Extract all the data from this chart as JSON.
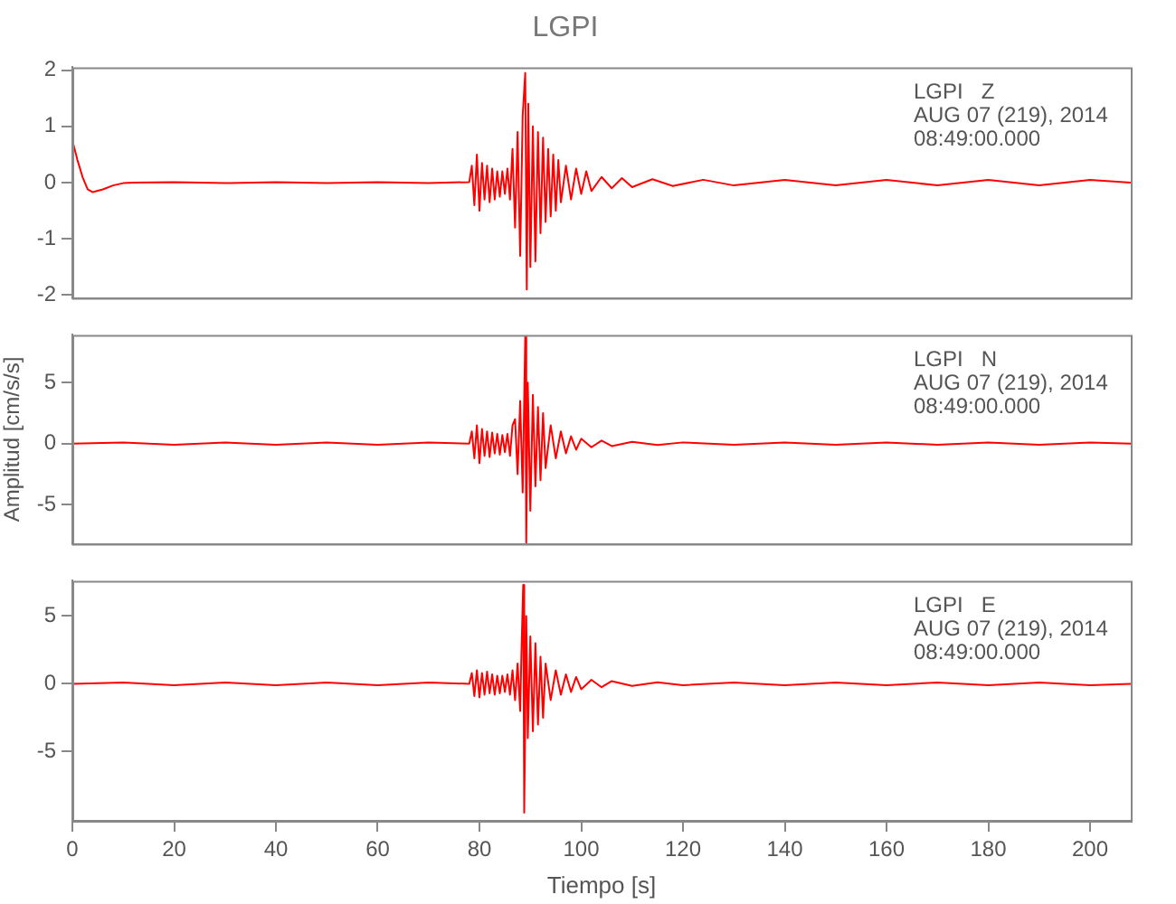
{
  "chart_data": [
    {
      "type": "line",
      "title": "LGPI",
      "annotations": [
        "LGPI   Z",
        "AUG 07 (219), 2014",
        "08:49:00.000"
      ],
      "color": "#ff0000",
      "marker": "none",
      "tick_labels": "y",
      "xlim": [
        0,
        208
      ],
      "xticks": [
        0,
        20,
        40,
        60,
        80,
        100,
        120,
        140,
        160,
        180,
        200
      ],
      "ylim": [
        -2.05,
        2.05
      ],
      "yticks": [
        -2,
        -1,
        0,
        1,
        2
      ],
      "x": [
        0,
        1,
        2,
        3,
        4,
        6,
        8,
        10,
        12,
        20,
        30,
        40,
        50,
        60,
        70,
        78,
        78.5,
        79,
        79.5,
        80,
        80.5,
        81,
        81.5,
        82,
        82.5,
        83,
        83.5,
        84,
        84.5,
        85,
        85.5,
        86,
        86.5,
        87,
        87.5,
        88,
        88.5,
        89,
        89.3,
        89.6,
        90,
        90.5,
        91,
        91.5,
        92,
        92.5,
        93,
        93.5,
        94,
        94.5,
        95,
        95.5,
        96,
        97,
        98,
        99,
        100,
        101,
        102,
        104,
        106,
        108,
        110,
        114,
        118,
        124,
        130,
        140,
        150,
        160,
        170,
        180,
        190,
        200,
        208
      ],
      "values": [
        0.75,
        0.4,
        0.1,
        -0.12,
        -0.17,
        -0.12,
        -0.05,
        -0.01,
        0,
        0.01,
        -0.01,
        0.01,
        -0.01,
        0.01,
        -0.01,
        0.01,
        0.3,
        -0.4,
        0.5,
        -0.5,
        0.35,
        -0.3,
        0.3,
        -0.35,
        0.25,
        -0.3,
        0.2,
        -0.25,
        0.2,
        -0.2,
        0.25,
        -0.3,
        0.6,
        -0.8,
        0.9,
        -1.3,
        1.2,
        1.95,
        -1.9,
        1.4,
        -1.5,
        1,
        -1.4,
        0.9,
        -0.9,
        0.8,
        -0.7,
        0.6,
        -0.6,
        0.5,
        -0.5,
        0.4,
        -0.35,
        0.3,
        -0.3,
        0.25,
        -0.2,
        0.2,
        -0.15,
        0.1,
        -0.1,
        0.08,
        -0.08,
        0.06,
        -0.06,
        0.05,
        -0.05,
        0.05,
        -0.05,
        0.05,
        -0.05,
        0.05,
        -0.05,
        0.05,
        0
      ]
    },
    {
      "type": "line",
      "ylabel": "Amplitud [cm/s/s]",
      "annotations": [
        "LGPI   N",
        "AUG 07 (219), 2014",
        "08:49:00.000"
      ],
      "color": "#ff0000",
      "marker": "none",
      "tick_labels": "y",
      "xlim": [
        0,
        208
      ],
      "xticks": [
        0,
        20,
        40,
        60,
        80,
        100,
        120,
        140,
        160,
        180,
        200
      ],
      "ylim": [
        -8.2,
        8.9
      ],
      "yticks": [
        -5,
        0,
        5
      ],
      "x": [
        0,
        10,
        20,
        30,
        40,
        50,
        60,
        70,
        78,
        78.5,
        79,
        79.5,
        80,
        80.5,
        81,
        81.5,
        82,
        82.5,
        83,
        83.5,
        84,
        84.5,
        85,
        85.5,
        86,
        86.5,
        87,
        87.5,
        88,
        88.5,
        89,
        89.2,
        89.5,
        90,
        90.5,
        91,
        91.5,
        92,
        92.5,
        93,
        94,
        95,
        96,
        97,
        98,
        99,
        100,
        102,
        104,
        106,
        110,
        115,
        120,
        130,
        140,
        150,
        160,
        170,
        180,
        190,
        200,
        208
      ],
      "values": [
        0,
        0.1,
        -0.1,
        0.1,
        -0.1,
        0.1,
        -0.1,
        0.1,
        0,
        1,
        -1.2,
        1.5,
        -1.6,
        1.2,
        -1,
        1,
        -1.1,
        0.9,
        -0.8,
        0.8,
        -0.9,
        0.7,
        -0.7,
        0.8,
        -1,
        1.5,
        2,
        -2.5,
        3.5,
        -4,
        8.8,
        -8.1,
        5,
        -5.5,
        4,
        -3.5,
        3,
        -3,
        2.5,
        -2,
        1.5,
        -1.2,
        1,
        -0.8,
        0.6,
        -0.5,
        0.4,
        -0.3,
        0.25,
        -0.2,
        0.15,
        -0.12,
        0.1,
        -0.1,
        0.1,
        -0.1,
        0.1,
        -0.1,
        0.1,
        -0.1,
        0.1,
        0
      ]
    },
    {
      "type": "line",
      "xlabel": "Tiempo [s]",
      "annotations": [
        "LGPI   E",
        "AUG 07 (219), 2014",
        "08:49:00.000"
      ],
      "color": "#ff0000",
      "marker": "none",
      "xlim": [
        0,
        208
      ],
      "xticks": [
        0,
        20,
        40,
        60,
        80,
        100,
        120,
        140,
        160,
        180,
        200
      ],
      "ylim": [
        -10.1,
        7.6
      ],
      "yticks": [
        -5,
        0,
        5
      ],
      "x": [
        0,
        10,
        20,
        30,
        40,
        50,
        60,
        70,
        78,
        78.5,
        79,
        79.5,
        80,
        80.5,
        81,
        81.5,
        82,
        82.5,
        83,
        83.5,
        84,
        84.5,
        85,
        85.5,
        86,
        86.5,
        87,
        87.5,
        88,
        88.3,
        88.6,
        88.8,
        89.2,
        89.5,
        90,
        90.5,
        91,
        91.5,
        92,
        92.5,
        93,
        94,
        95,
        96,
        97,
        98,
        99,
        100,
        102,
        104,
        106,
        110,
        115,
        120,
        130,
        140,
        150,
        160,
        170,
        180,
        190,
        200,
        208
      ],
      "values": [
        0,
        0.1,
        -0.1,
        0.1,
        -0.1,
        0.1,
        -0.1,
        0.1,
        0,
        0.8,
        -0.9,
        1,
        -1,
        0.8,
        -0.8,
        0.9,
        -0.7,
        0.7,
        -0.8,
        0.6,
        -0.7,
        0.6,
        -0.6,
        0.7,
        -0.8,
        1,
        -1.2,
        1.5,
        -2,
        3,
        7.3,
        -9.5,
        5,
        -4,
        3.5,
        -3.5,
        3,
        -3,
        2,
        -2.5,
        1.5,
        -1.2,
        1,
        -0.8,
        0.7,
        -0.6,
        0.5,
        -0.4,
        0.3,
        -0.25,
        0.2,
        -0.15,
        0.12,
        -0.1,
        0.1,
        -0.1,
        0.1,
        -0.1,
        0.1,
        -0.1,
        0.1,
        -0.1,
        0
      ]
    }
  ]
}
